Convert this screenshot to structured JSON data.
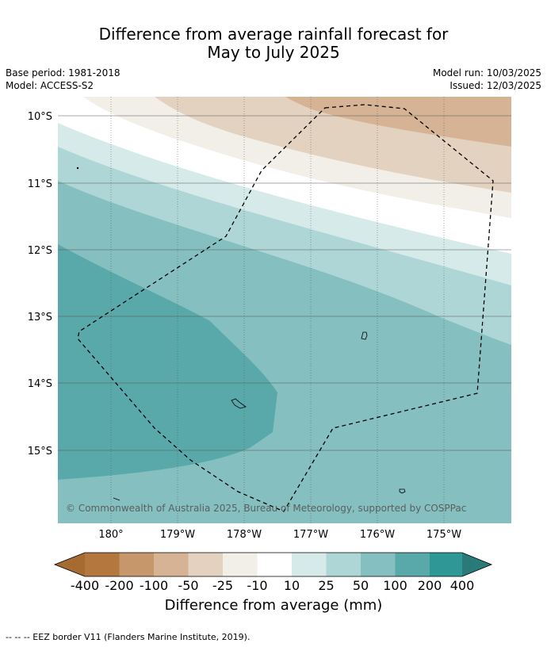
{
  "title": {
    "line1": "Difference from average rainfall forecast for",
    "line2": "May to July 2025"
  },
  "meta": {
    "base_period": "Base period: 1981-2018",
    "model": "Model: ACCESS-S2",
    "model_run": "Model run: 10/03/2025",
    "issued": "Issued: 12/03/2025"
  },
  "map": {
    "lat_labels": [
      "10°S",
      "11°S",
      "12°S",
      "13°S",
      "14°S",
      "15°S"
    ],
    "lon_labels": [
      "180°",
      "179°W",
      "178°W",
      "177°W",
      "176°W",
      "175°W"
    ],
    "copyright": "© Commonwealth of Australia 2025, Bureau of Meteorology, supported by COSPPac"
  },
  "colorbar": {
    "labels": [
      "-400",
      "-200",
      "-100",
      "-50",
      "-25",
      "-10",
      "10",
      "25",
      "50",
      "100",
      "200",
      "400"
    ],
    "colors": [
      "#a56b30",
      "#b4773d",
      "#c5976a",
      "#d5b394",
      "#e4d2c0",
      "#f2eee8",
      "#ffffff",
      "#d6eae9",
      "#aed6d6",
      "#85bfbf",
      "#59a9aa",
      "#2f9796",
      "#2a7a79"
    ],
    "title": "Difference from average (mm)"
  },
  "footer": "--  --  -- EEZ border V11 (Flanders Marine Institute, 2019)."
}
